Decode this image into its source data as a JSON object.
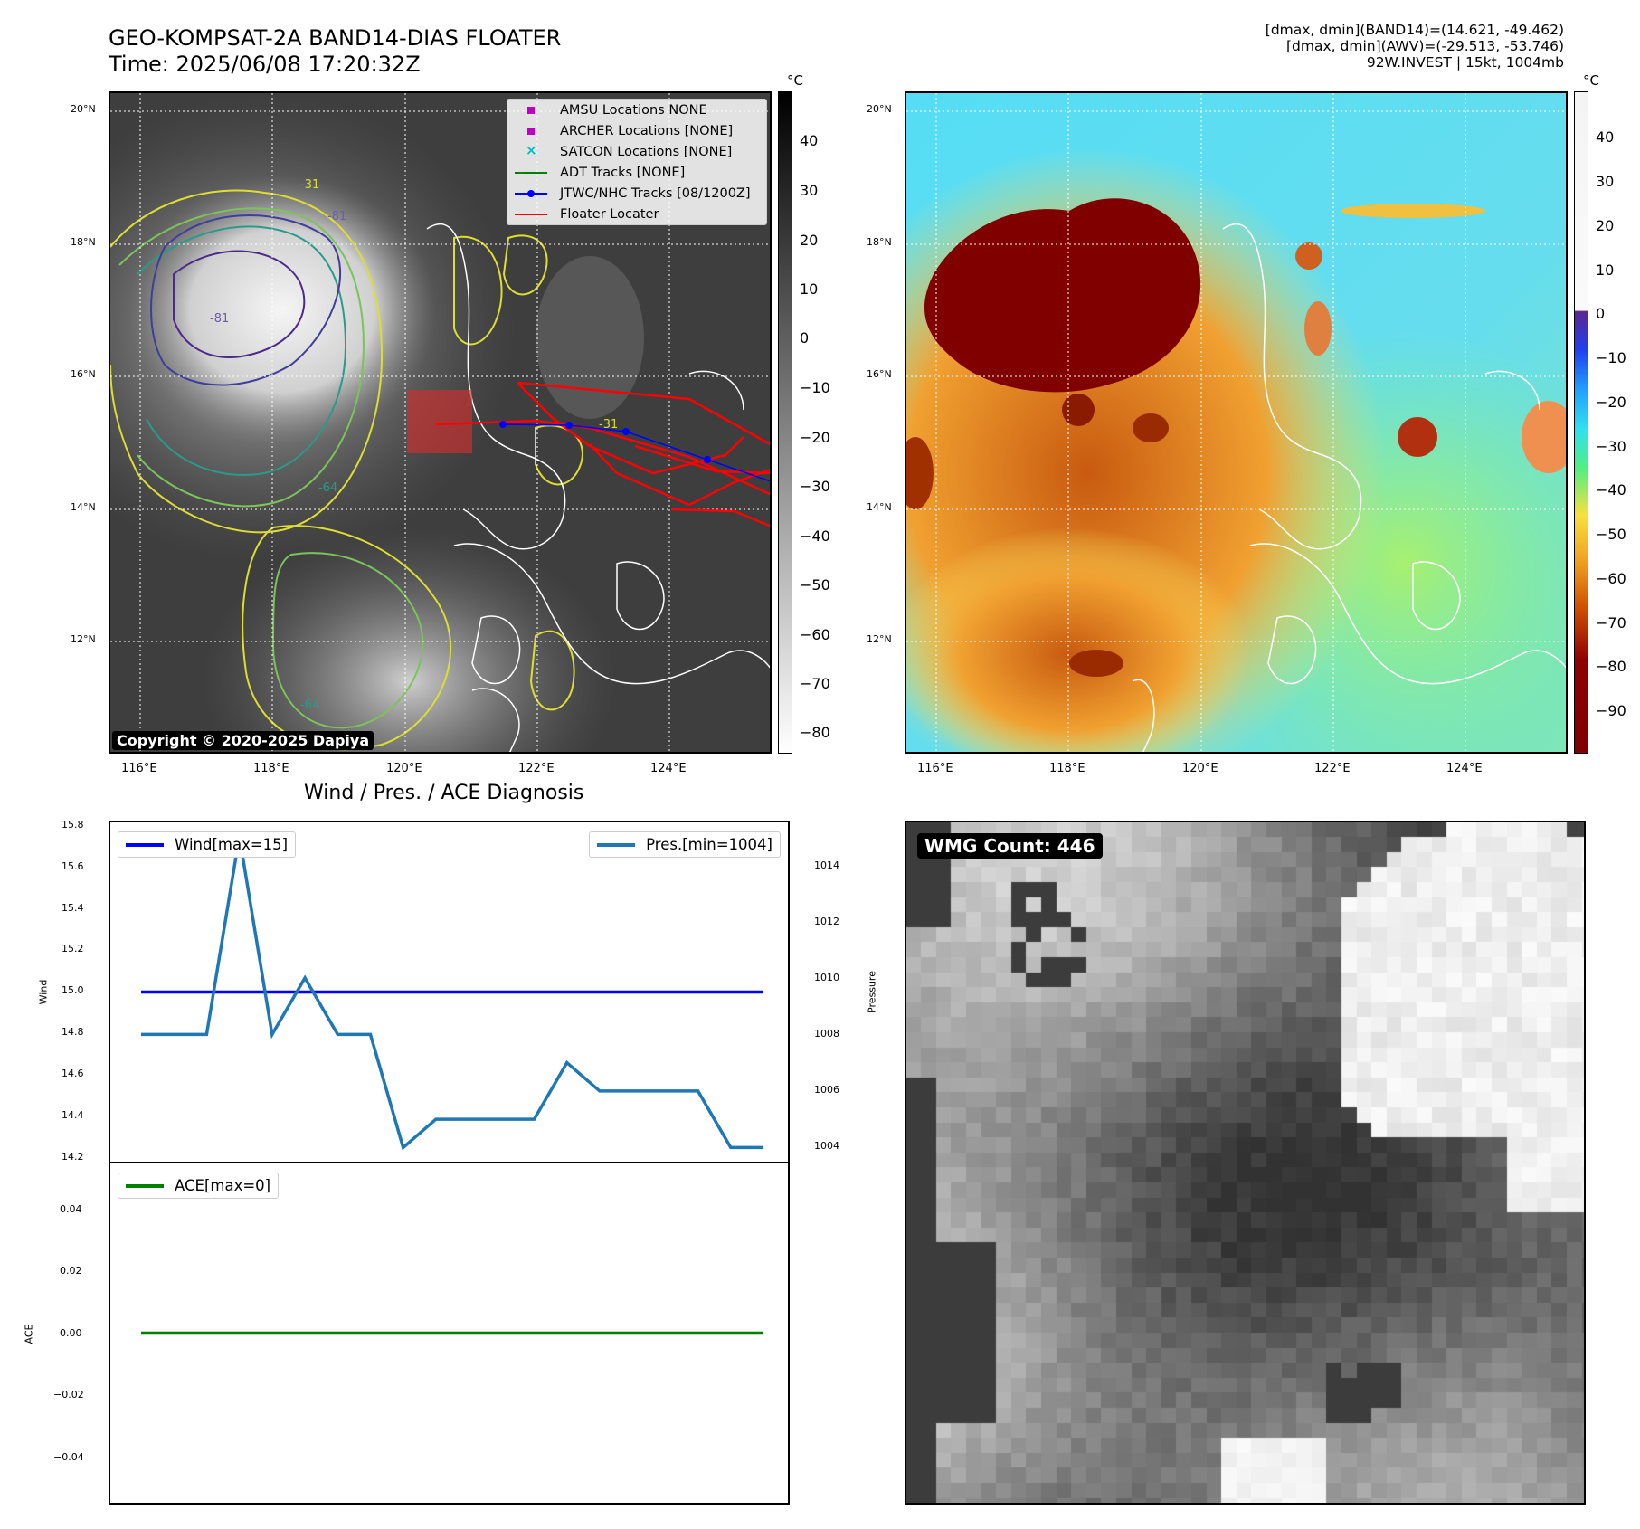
{
  "header": {
    "title_line1": "GEO-KOMPSAT-2A BAND14-DIAS FLOATER",
    "title_line2": "Time: 2025/06/08 17:20:32Z",
    "info_line1": "[dmax, dmin](BAND14)=(14.621, -49.462)",
    "info_line2": "[dmax, dmin](AWV)=(-29.513, -53.746)",
    "info_line3": "92W.INVEST | 15kt, 1004mb"
  },
  "map": {
    "lat_labels": [
      "20°N",
      "18°N",
      "16°N",
      "14°N",
      "12°N"
    ],
    "lon_labels": [
      "116°E",
      "118°E",
      "120°E",
      "122°E",
      "124°E"
    ],
    "copyright": "Copyright © 2020-2025 Dapiya",
    "contour_labels": [
      "-81",
      "-81",
      "-31",
      "-31",
      "-64",
      "-64"
    ],
    "legend": [
      {
        "label": "AMSU Locations NONE",
        "color": "#c000c0",
        "symbol": "square"
      },
      {
        "label": "ARCHER Locations [NONE]",
        "color": "#c000c0",
        "symbol": "square"
      },
      {
        "label": "SATCON Locations [NONE]",
        "color": "#00bfbf",
        "symbol": "x"
      },
      {
        "label": "ADT Tracks [NONE]",
        "color": "#008000",
        "symbol": "line"
      },
      {
        "label": "JTWC/NHC Tracks [08/1200Z]",
        "color": "#0000ff",
        "symbol": "line-dot"
      },
      {
        "label": "Floater Locater",
        "color": "#ff0000",
        "symbol": "line"
      }
    ]
  },
  "colorbar_left": {
    "unit": "°C",
    "ticks": [
      "40",
      "30",
      "20",
      "10",
      "0",
      "−10",
      "−20",
      "−30",
      "−40",
      "−50",
      "−60",
      "−70",
      "−80"
    ]
  },
  "colorbar_right": {
    "unit": "°C",
    "ticks": [
      "40",
      "30",
      "20",
      "10",
      "0",
      "−10",
      "−20",
      "−30",
      "−40",
      "−50",
      "−60",
      "−70",
      "−80",
      "−90"
    ]
  },
  "diagnosis": {
    "title": "Wind / Pres. / ACE Diagnosis",
    "wind_label": "Wind",
    "pressure_label": "Pressure",
    "ace_label": "ACE",
    "legend_wind": "Wind[max=15]",
    "legend_pres": "Pres.[min=1004]",
    "legend_ace": "ACE[max=0]",
    "wind_ticks": [
      "15.8",
      "15.6",
      "15.4",
      "15.2",
      "15.0",
      "14.8",
      "14.6",
      "14.4",
      "14.2"
    ],
    "pressure_ticks": [
      "1014",
      "1012",
      "1010",
      "1008",
      "1006",
      "1004"
    ],
    "ace_ticks": [
      "0.04",
      "0.02",
      "0.00",
      "−0.02",
      "−0.04"
    ],
    "colors": {
      "wind": "#0000ff",
      "pressure": "#1f77b4",
      "ace": "#008000"
    }
  },
  "chart_data": [
    {
      "type": "line",
      "series": [
        {
          "name": "Wind[max=15]",
          "axis": "left",
          "values": [
            15,
            15,
            15,
            15,
            15,
            15,
            15,
            15,
            15,
            15,
            15,
            15,
            15,
            15,
            15,
            15,
            15,
            15,
            15,
            15
          ]
        },
        {
          "name": "Pres.[min=1004]",
          "axis": "right",
          "values": [
            1008,
            1008,
            1008,
            1015,
            1008,
            1010,
            1008,
            1008,
            1004,
            1005,
            1005,
            1005,
            1005,
            1007,
            1006,
            1006,
            1006,
            1006,
            1004,
            1004
          ]
        }
      ],
      "ylabel": "Wind",
      "y2label": "Pressure",
      "ylim": [
        14.2,
        15.8
      ],
      "y2lim": [
        1003.5,
        1015.5
      ]
    },
    {
      "type": "line",
      "series": [
        {
          "name": "ACE[max=0]",
          "values": [
            0,
            0,
            0,
            0,
            0,
            0,
            0,
            0,
            0,
            0,
            0,
            0,
            0,
            0,
            0,
            0,
            0,
            0,
            0,
            0
          ]
        }
      ],
      "ylabel": "ACE",
      "ylim": [
        -0.055,
        0.055
      ]
    }
  ],
  "wmg": {
    "label": "WMG Count: 446"
  }
}
